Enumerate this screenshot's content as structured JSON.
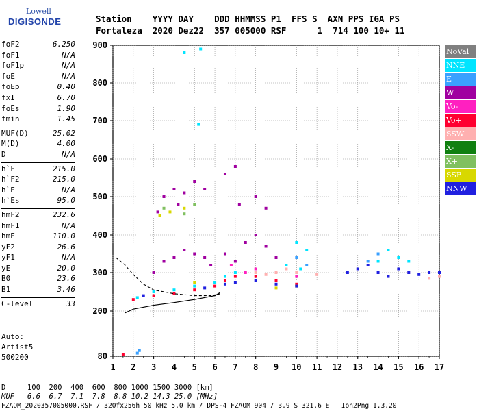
{
  "logo": {
    "line1": "Lowell",
    "line2": "DIGISONDE"
  },
  "header": {
    "line1": "Station    YYYY DAY    DDD HHMMSS P1  FFS S  AXN PPS IGA PS",
    "line2": "Fortaleza  2020 Dez22  357 005000 RSF      1  714 100 10+ 11"
  },
  "params": {
    "group1": [
      {
        "k": "foF2",
        "v": "6.250"
      },
      {
        "k": "foF1",
        "v": "N/A"
      },
      {
        "k": "foF1p",
        "v": "N/A"
      },
      {
        "k": "foE",
        "v": "N/A"
      },
      {
        "k": "foEp",
        "v": "0.40"
      },
      {
        "k": "fxI",
        "v": "6.70"
      },
      {
        "k": "foEs",
        "v": "1.90"
      },
      {
        "k": "fmin",
        "v": "1.45"
      }
    ],
    "group2": [
      {
        "k": "MUF(D)",
        "v": "25.02"
      },
      {
        "k": "M(D)",
        "v": "4.00"
      },
      {
        "k": "D",
        "v": "N/A"
      }
    ],
    "group3": [
      {
        "k": "h`F",
        "v": "215.0"
      },
      {
        "k": "h`F2",
        "v": "215.0"
      },
      {
        "k": "h`E",
        "v": "N/A"
      },
      {
        "k": "h`Es",
        "v": "95.0"
      }
    ],
    "group4": [
      {
        "k": "hmF2",
        "v": "232.6"
      },
      {
        "k": "hmF1",
        "v": "N/A"
      },
      {
        "k": "hmE",
        "v": "110.0"
      },
      {
        "k": "yF2",
        "v": "26.6"
      },
      {
        "k": "yF1",
        "v": "N/A"
      },
      {
        "k": "yE",
        "v": "20.0"
      },
      {
        "k": "B0",
        "v": "23.6"
      },
      {
        "k": "B1",
        "v": "3.46"
      }
    ],
    "clevel": {
      "k": "C-level",
      "v": "33"
    }
  },
  "auto": {
    "line1": "Auto:",
    "line2": "Artist5",
    "line3": "500200"
  },
  "footer": {
    "d_row": "D     100  200  400  600  800 1000 1500 3000 [km]",
    "muf_row": "MUF   6.6  6.7  7.1  7.8  8.8 10.2 14.3 25.0 [MHz]",
    "file_row": "FZAOM_2020357005000.RSF / 320fx256h 50 kHz 5.0 km / DPS-4 FZAOM 904 / 3.9 S 321.6 E   Ion2Png 1.3.20"
  },
  "legend": [
    {
      "name": "NoVal",
      "color": "#808080"
    },
    {
      "name": "NNE",
      "color": "#00e5ff"
    },
    {
      "name": "E",
      "color": "#3aa0ff"
    },
    {
      "name": "W",
      "color": "#a000a0"
    },
    {
      "name": "Vo-",
      "color": "#ff20c0"
    },
    {
      "name": "Vo+",
      "color": "#ff0030"
    },
    {
      "name": "SSW",
      "color": "#ffb0b0"
    },
    {
      "name": "X-",
      "color": "#108010"
    },
    {
      "name": "X+",
      "color": "#80c060"
    },
    {
      "name": "SSE",
      "color": "#d8d800"
    },
    {
      "name": "NNW",
      "color": "#2020e0"
    }
  ],
  "chart_data": {
    "type": "scatter",
    "title": "",
    "xlabel": "",
    "ylabel": "",
    "xlim": [
      1,
      17
    ],
    "ylim": [
      80,
      900
    ],
    "x_ticks": [
      1,
      2,
      3,
      4,
      5,
      6,
      7,
      8,
      9,
      10,
      11,
      12,
      13,
      14,
      15,
      16,
      17
    ],
    "y_ticks": [
      80,
      200,
      300,
      400,
      500,
      600,
      700,
      800,
      900
    ],
    "grid": true,
    "legend_position": "right",
    "series": [
      {
        "name": "W",
        "color": "#a000a0",
        "points": [
          [
            3.0,
            300
          ],
          [
            3.5,
            330
          ],
          [
            4.0,
            340
          ],
          [
            4.5,
            360
          ],
          [
            5.0,
            350
          ],
          [
            5.5,
            340
          ],
          [
            5.8,
            320
          ],
          [
            6.5,
            350
          ],
          [
            7.0,
            330
          ],
          [
            7.5,
            380
          ],
          [
            8.0,
            400
          ],
          [
            8.5,
            370
          ],
          [
            9.0,
            340
          ],
          [
            3.5,
            500
          ],
          [
            4.0,
            520
          ],
          [
            4.5,
            510
          ],
          [
            5.0,
            540
          ],
          [
            5.5,
            520
          ],
          [
            6.5,
            560
          ],
          [
            7.0,
            580
          ],
          [
            7.2,
            480
          ],
          [
            8.0,
            500
          ],
          [
            8.5,
            470
          ],
          [
            3.2,
            460
          ],
          [
            4.2,
            480
          ]
        ]
      },
      {
        "name": "NNE",
        "color": "#00e5ff",
        "points": [
          [
            2.2,
            235
          ],
          [
            3.0,
            250
          ],
          [
            4.0,
            255
          ],
          [
            5.0,
            265
          ],
          [
            6.0,
            275
          ],
          [
            6.5,
            290
          ],
          [
            7.0,
            300
          ],
          [
            9.5,
            320
          ],
          [
            10.0,
            380
          ],
          [
            10.5,
            360
          ],
          [
            10.2,
            310
          ],
          [
            14.0,
            330
          ],
          [
            14.5,
            360
          ],
          [
            15.0,
            340
          ],
          [
            15.5,
            330
          ],
          [
            5.2,
            690
          ],
          [
            4.5,
            880
          ],
          [
            5.3,
            890
          ]
        ]
      },
      {
        "name": "E",
        "color": "#3aa0ff",
        "points": [
          [
            2.2,
            88
          ],
          [
            2.3,
            95
          ],
          [
            10.0,
            340
          ],
          [
            10.5,
            320
          ],
          [
            13.5,
            330
          ],
          [
            14.0,
            350
          ]
        ]
      },
      {
        "name": "Vo-",
        "color": "#ff20c0",
        "points": [
          [
            6.8,
            320
          ],
          [
            7.5,
            300
          ],
          [
            8.0,
            310
          ],
          [
            9.0,
            300
          ],
          [
            10.0,
            290
          ]
        ]
      },
      {
        "name": "Vo+",
        "color": "#ff0030",
        "points": [
          [
            1.5,
            85
          ],
          [
            2.0,
            230
          ],
          [
            3.0,
            240
          ],
          [
            4.0,
            245
          ],
          [
            5.0,
            255
          ],
          [
            6.0,
            265
          ],
          [
            6.5,
            280
          ],
          [
            7.0,
            290
          ],
          [
            8.0,
            290
          ],
          [
            9.0,
            280
          ],
          [
            10.0,
            270
          ]
        ]
      },
      {
        "name": "SSW",
        "color": "#ffb0b0",
        "points": [
          [
            8.0,
            300
          ],
          [
            8.5,
            295
          ],
          [
            9.0,
            300
          ],
          [
            9.5,
            310
          ],
          [
            10.0,
            300
          ],
          [
            11.0,
            295
          ],
          [
            15.5,
            300
          ],
          [
            16.5,
            285
          ],
          [
            17.0,
            290
          ]
        ]
      },
      {
        "name": "X+",
        "color": "#80c060",
        "points": [
          [
            3.5,
            470
          ],
          [
            4.5,
            455
          ],
          [
            5.0,
            480
          ]
        ]
      },
      {
        "name": "SSE",
        "color": "#d8d800",
        "points": [
          [
            3.3,
            450
          ],
          [
            3.8,
            460
          ],
          [
            4.5,
            470
          ],
          [
            5.0,
            275
          ],
          [
            9.0,
            260
          ],
          [
            10.0,
            265
          ]
        ]
      },
      {
        "name": "NNW",
        "color": "#2020e0",
        "points": [
          [
            2.5,
            240
          ],
          [
            5.5,
            260
          ],
          [
            6.5,
            270
          ],
          [
            7.0,
            275
          ],
          [
            8.0,
            280
          ],
          [
            9.0,
            270
          ],
          [
            10.0,
            265
          ],
          [
            12.5,
            300
          ],
          [
            13.0,
            310
          ],
          [
            13.5,
            320
          ],
          [
            14.0,
            300
          ],
          [
            14.5,
            290
          ],
          [
            15.0,
            310
          ],
          [
            15.5,
            300
          ],
          [
            16.0,
            295
          ],
          [
            16.5,
            300
          ],
          [
            17.0,
            300
          ]
        ]
      }
    ],
    "trace_lines": [
      {
        "style": "solid",
        "points": [
          [
            1.6,
            195
          ],
          [
            2.0,
            205
          ],
          [
            3.0,
            215
          ],
          [
            4.0,
            222
          ],
          [
            5.0,
            230
          ],
          [
            6.0,
            240
          ],
          [
            6.25,
            248
          ]
        ]
      },
      {
        "style": "dashed",
        "points": [
          [
            1.15,
            340
          ],
          [
            1.6,
            320
          ],
          [
            2.0,
            295
          ],
          [
            2.5,
            270
          ],
          [
            3.0,
            255
          ],
          [
            4.0,
            245
          ],
          [
            5.0,
            240
          ],
          [
            6.0,
            240
          ],
          [
            6.25,
            245
          ]
        ]
      }
    ]
  }
}
